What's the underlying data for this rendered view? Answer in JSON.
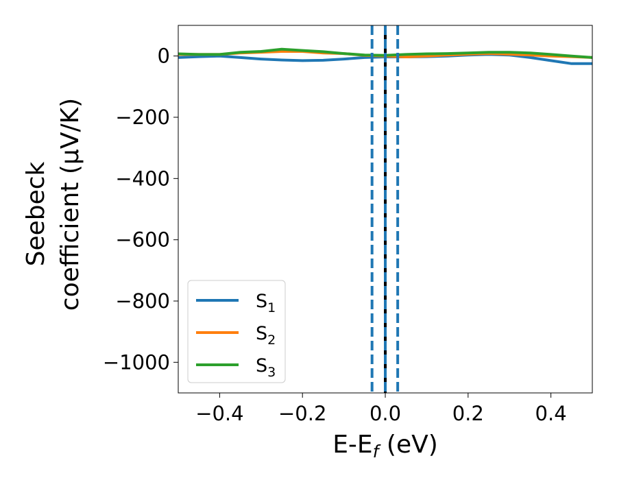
{
  "chart_data": {
    "type": "line",
    "xlabel": {
      "main": "E-E",
      "sub": "f",
      "unit": " (eV)"
    },
    "ylabel": {
      "line1": "Seebeck",
      "line2": "coefficient  (μV/K)"
    },
    "xlim": [
      -0.5,
      0.5
    ],
    "ylim": [
      -1100,
      100
    ],
    "xticks": [
      -0.4,
      -0.2,
      0.0,
      0.2,
      0.4
    ],
    "xtick_labels": [
      "−0.4",
      "−0.2",
      "0.0",
      "0.2",
      "0.4"
    ],
    "yticks": [
      0,
      -200,
      -400,
      -600,
      -800,
      -1000
    ],
    "ytick_labels": [
      "0",
      "−200",
      "−400",
      "−600",
      "−800",
      "−1000"
    ],
    "grid": false,
    "legend_position": "lower-left",
    "series": [
      {
        "name": {
          "main": "S",
          "sub": "1"
        },
        "color": "#1f77b4",
        "x": [
          -0.5,
          -0.45,
          -0.4,
          -0.35,
          -0.3,
          -0.25,
          -0.2,
          -0.15,
          -0.1,
          -0.05,
          0.0,
          0.05,
          0.1,
          0.15,
          0.2,
          0.25,
          0.3,
          0.35,
          0.4,
          0.45,
          0.5
        ],
        "y": [
          -5,
          -2,
          0,
          -5,
          -10,
          -13,
          -15,
          -14,
          -10,
          -5,
          -3,
          -3,
          -2,
          0,
          3,
          5,
          3,
          -5,
          -15,
          -25,
          -25
        ]
      },
      {
        "name": {
          "main": "S",
          "sub": "2"
        },
        "color": "#ff7f0e",
        "x": [
          -0.5,
          -0.45,
          -0.4,
          -0.35,
          -0.3,
          -0.25,
          -0.2,
          -0.15,
          -0.1,
          -0.05,
          0.0,
          0.05,
          0.1,
          0.15,
          0.2,
          0.25,
          0.3,
          0.35,
          0.4,
          0.45,
          0.5
        ],
        "y": [
          5,
          5,
          5,
          10,
          12,
          15,
          15,
          10,
          8,
          2,
          0,
          -3,
          0,
          3,
          6,
          8,
          6,
          3,
          0,
          -2,
          -5
        ]
      },
      {
        "name": {
          "main": "S",
          "sub": "3"
        },
        "color": "#2ca02c",
        "x": [
          -0.5,
          -0.45,
          -0.4,
          -0.35,
          -0.3,
          -0.25,
          -0.2,
          -0.15,
          -0.1,
          -0.05,
          0.0,
          0.05,
          0.1,
          0.15,
          0.2,
          0.25,
          0.3,
          0.35,
          0.4,
          0.45,
          0.5
        ],
        "y": [
          7,
          5,
          5,
          12,
          15,
          22,
          18,
          14,
          8,
          3,
          2,
          5,
          7,
          8,
          10,
          12,
          12,
          10,
          5,
          0,
          -5
        ]
      }
    ],
    "reference_lines": [
      {
        "x": -0.032,
        "style": "dashed",
        "color": "#1f77b4"
      },
      {
        "x": 0.0,
        "style": "solid",
        "color": "#000000"
      },
      {
        "x": 0.0,
        "style": "dashed",
        "color": "#1f77b4"
      },
      {
        "x": 0.03,
        "style": "dashed",
        "color": "#1f77b4"
      }
    ]
  }
}
